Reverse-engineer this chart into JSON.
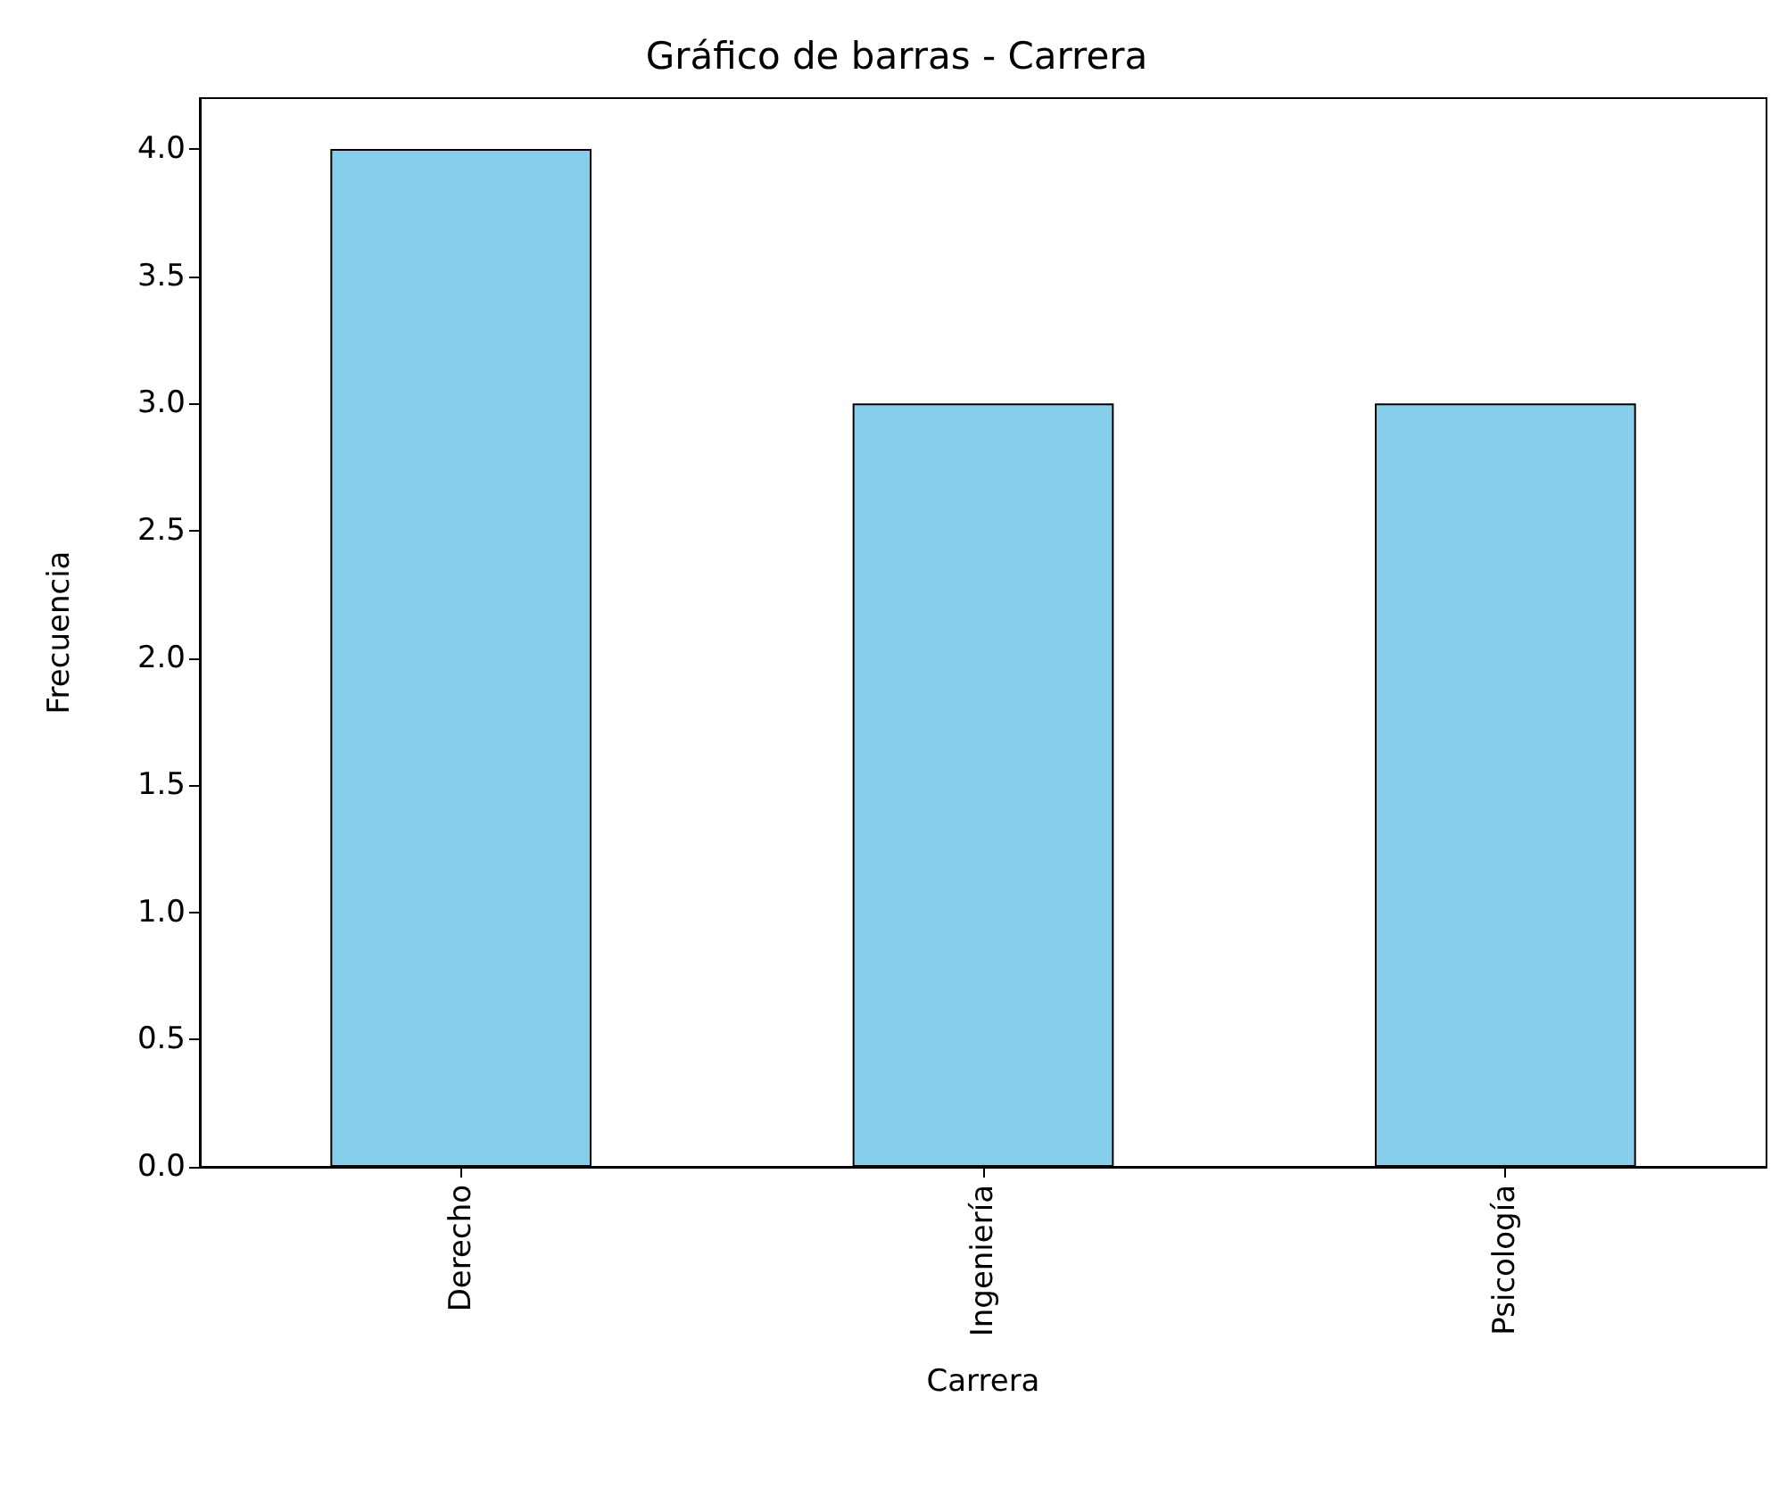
{
  "chart_data": {
    "type": "bar",
    "title": "Gráfico de barras - Carrera",
    "xlabel": "Carrera",
    "ylabel": "Frecuencia",
    "categories": [
      "Derecho",
      "Ingeniería",
      "Psicología"
    ],
    "values": [
      4,
      3,
      3
    ],
    "color": "#87ceeb",
    "ylim": [
      0,
      4.2
    ],
    "yticks": [
      {
        "value": 0,
        "label": "0.0"
      },
      {
        "value": 0.5,
        "label": "0.5"
      },
      {
        "value": 1,
        "label": "1.0"
      },
      {
        "value": 1.5,
        "label": "1.5"
      },
      {
        "value": 2,
        "label": "2.0"
      },
      {
        "value": 2.5,
        "label": "2.5"
      },
      {
        "value": 3,
        "label": "3.0"
      },
      {
        "value": 3.5,
        "label": "3.5"
      },
      {
        "value": 4,
        "label": "4.0"
      }
    ],
    "grid": false
  }
}
